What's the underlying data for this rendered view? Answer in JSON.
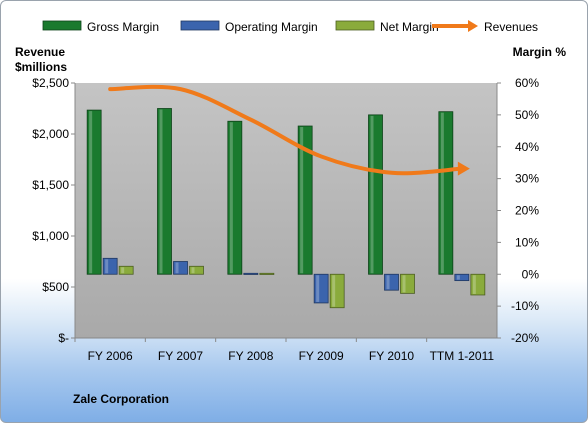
{
  "chart_data": {
    "type": "bar",
    "title": "",
    "categories": [
      "FY 2006",
      "FY 2007",
      "FY 2008",
      "FY 2009",
      "FY 2010",
      "TTM 1-2011"
    ],
    "series": [
      {
        "name": "Gross Margin",
        "axis": "right",
        "values": [
          51.5,
          52.0,
          48.0,
          46.5,
          50.0,
          51.0
        ],
        "color": "#1a7a2e"
      },
      {
        "name": "Operating Margin",
        "axis": "right",
        "values": [
          5.0,
          4.0,
          0.3,
          -9.0,
          -5.0,
          -2.0
        ],
        "color": "#3b64ad"
      },
      {
        "name": "Net Margin",
        "axis": "right",
        "values": [
          2.5,
          2.5,
          0.3,
          -10.5,
          -6.0,
          -6.5
        ],
        "color": "#8aab3c"
      },
      {
        "name": "Revenues",
        "type": "line",
        "axis": "left",
        "values": [
          2440,
          2440,
          2140,
          1780,
          1620,
          1660
        ],
        "color": "#f07a1a"
      }
    ],
    "left_axis": {
      "label": [
        "Revenue",
        "$millions"
      ],
      "ylim": [
        0,
        2500
      ],
      "ticks": [
        "$-",
        "$500",
        "$1,000",
        "$1,500",
        "$2,000",
        "$2,500"
      ]
    },
    "right_axis": {
      "label": "Margin  %",
      "ylim": [
        -20,
        60
      ],
      "ticks": [
        "-20%",
        "-10%",
        "0%",
        "10%",
        "20%",
        "30%",
        "40%",
        "50%",
        "60%"
      ]
    },
    "legend_position": "top",
    "grid": false,
    "footer": "Zale Corporation"
  }
}
